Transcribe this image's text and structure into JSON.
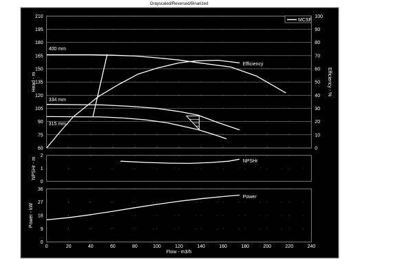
{
  "title": "Grayscaled/Reversed/Binarized",
  "colors": {
    "background": "#000000",
    "curve": "#ffffff",
    "grid": "#8a8a8a",
    "page": "#ffffff"
  },
  "chart_data": [
    {
      "type": "line",
      "panel": "head-efficiency",
      "xlabel": "Flow - m3/h",
      "ylabel": "Head - m",
      "y2label": "Efficiency - %",
      "xlim": [
        0,
        240
      ],
      "ylim": [
        60,
        210
      ],
      "y2lim": [
        0,
        100
      ],
      "xticks": [
        "0",
        "20",
        "40",
        "60",
        "80",
        "100",
        "120",
        "140",
        "160",
        "180",
        "200",
        "220",
        "240"
      ],
      "yticks": [
        "60",
        "75",
        "90",
        "105",
        "120",
        "135",
        "150",
        "165",
        "180",
        "195",
        "210"
      ],
      "y2ticks": [
        "0",
        "10",
        "20",
        "30",
        "40",
        "50",
        "60",
        "70",
        "80",
        "90",
        "100"
      ],
      "grid": true,
      "legend": {
        "position": "top-right",
        "entries": [
          "MCSF"
        ]
      },
      "series": [
        {
          "name": "400 mm",
          "axis": "left",
          "x": [
            0,
            40,
            60,
            80,
            100,
            120,
            140,
            167,
            190,
            217
          ],
          "y": [
            166,
            166,
            165.5,
            164.5,
            162.5,
            160,
            156.5,
            152,
            142,
            122.5
          ]
        },
        {
          "name": "334 mm",
          "axis": "left",
          "x": [
            0,
            50,
            80,
            100,
            120,
            137,
            155,
            175
          ],
          "y": [
            109.5,
            109,
            107,
            105,
            101.5,
            97.5,
            89,
            80.5
          ]
        },
        {
          "name": "315 mm",
          "axis": "left",
          "x": [
            0,
            50,
            70,
            90,
            110,
            137,
            150,
            163
          ],
          "y": [
            95.7,
            95.3,
            94,
            92,
            88.5,
            81,
            76,
            70.5
          ]
        },
        {
          "name": "Efficiency",
          "axis": "right",
          "x": [
            0,
            12,
            24,
            47,
            65,
            83,
            100,
            120,
            135,
            155,
            175
          ],
          "y": [
            0,
            12,
            23.5,
            39,
            48,
            56,
            60.5,
            64.5,
            66,
            66.5,
            64.5
          ]
        },
        {
          "name": "MCSF",
          "axis": "left",
          "x": [
            42,
            55
          ],
          "y": [
            95.7,
            166.5
          ]
        }
      ],
      "marker_triangle": {
        "x": [
          126.7,
          138.3,
          138.3
        ],
        "y": [
          96.5,
          96.5,
          81
        ]
      }
    },
    {
      "type": "line",
      "panel": "npsh",
      "ylabel": "NPSHr - m",
      "xlim": [
        0,
        240
      ],
      "ylim": [
        0,
        2
      ],
      "yticks": [
        "0",
        "1",
        "2"
      ],
      "grid": true,
      "series": [
        {
          "name": "NPSHr",
          "x": [
            67,
            90,
            110,
            130,
            150,
            165,
            175
          ],
          "y": [
            1.55,
            1.45,
            1.4,
            1.38,
            1.45,
            1.55,
            1.7
          ]
        }
      ]
    },
    {
      "type": "line",
      "panel": "power",
      "xlabel": "Flow - m3/h",
      "ylabel": "Power - kW",
      "xlim": [
        0,
        240
      ],
      "ylim": [
        0,
        36
      ],
      "yticks": [
        "0",
        "9",
        "18",
        "27",
        "36"
      ],
      "grid": true,
      "series": [
        {
          "name": "Power",
          "x": [
            0,
            20,
            40,
            60,
            80,
            100,
            120,
            140,
            160,
            175
          ],
          "y": [
            15,
            16.5,
            18.5,
            20.8,
            23.2,
            25.5,
            27.6,
            29.3,
            30.8,
            31.7
          ]
        }
      ]
    }
  ]
}
